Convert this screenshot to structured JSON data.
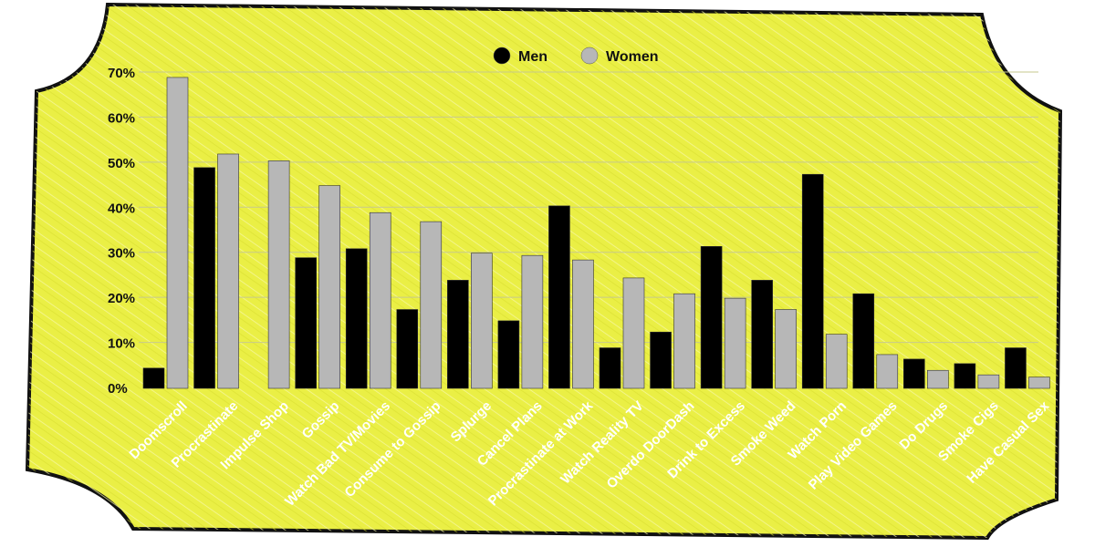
{
  "chart_data": {
    "type": "bar",
    "title": "",
    "xlabel": "",
    "ylabel": "",
    "ylim": [
      0,
      70
    ],
    "y_ticks": [
      "0%",
      "10%",
      "20%",
      "30%",
      "40%",
      "50%",
      "60%",
      "70%"
    ],
    "grid": true,
    "legend_position": "top-center",
    "categories": [
      "Doomscroll",
      "Procrastinate",
      "Impulse Shop",
      "Gossip",
      "Watch Bad TV/Movies",
      "Consume to Gossip",
      "Splurge",
      "Cancel Plans",
      "Procrastinate at Work",
      "Watch Reality TV",
      "Overdo DoorDash",
      "Drink to Excess",
      "Smoke Weed",
      "Watch Porn",
      "Play Video Games",
      "Do Drugs",
      "Smoke Cigs",
      "Have Casual Sex"
    ],
    "series": [
      {
        "name": "Men",
        "color": "#000000",
        "values": [
          4.5,
          49,
          0,
          29,
          31,
          17.5,
          24,
          15,
          40.5,
          9,
          12.5,
          31.5,
          24,
          47.5,
          21,
          6.5,
          5.5,
          9
        ]
      },
      {
        "name": "Women",
        "color": "#b7b7b7",
        "values": [
          69,
          52,
          50.5,
          45,
          39,
          37,
          30,
          29.5,
          28.5,
          24.5,
          21,
          20,
          17.5,
          12,
          7.5,
          4,
          3,
          2.5
        ]
      }
    ]
  },
  "colors": {
    "background": "#eaef45",
    "border": "#111111",
    "gridline": "#c7c98d"
  }
}
